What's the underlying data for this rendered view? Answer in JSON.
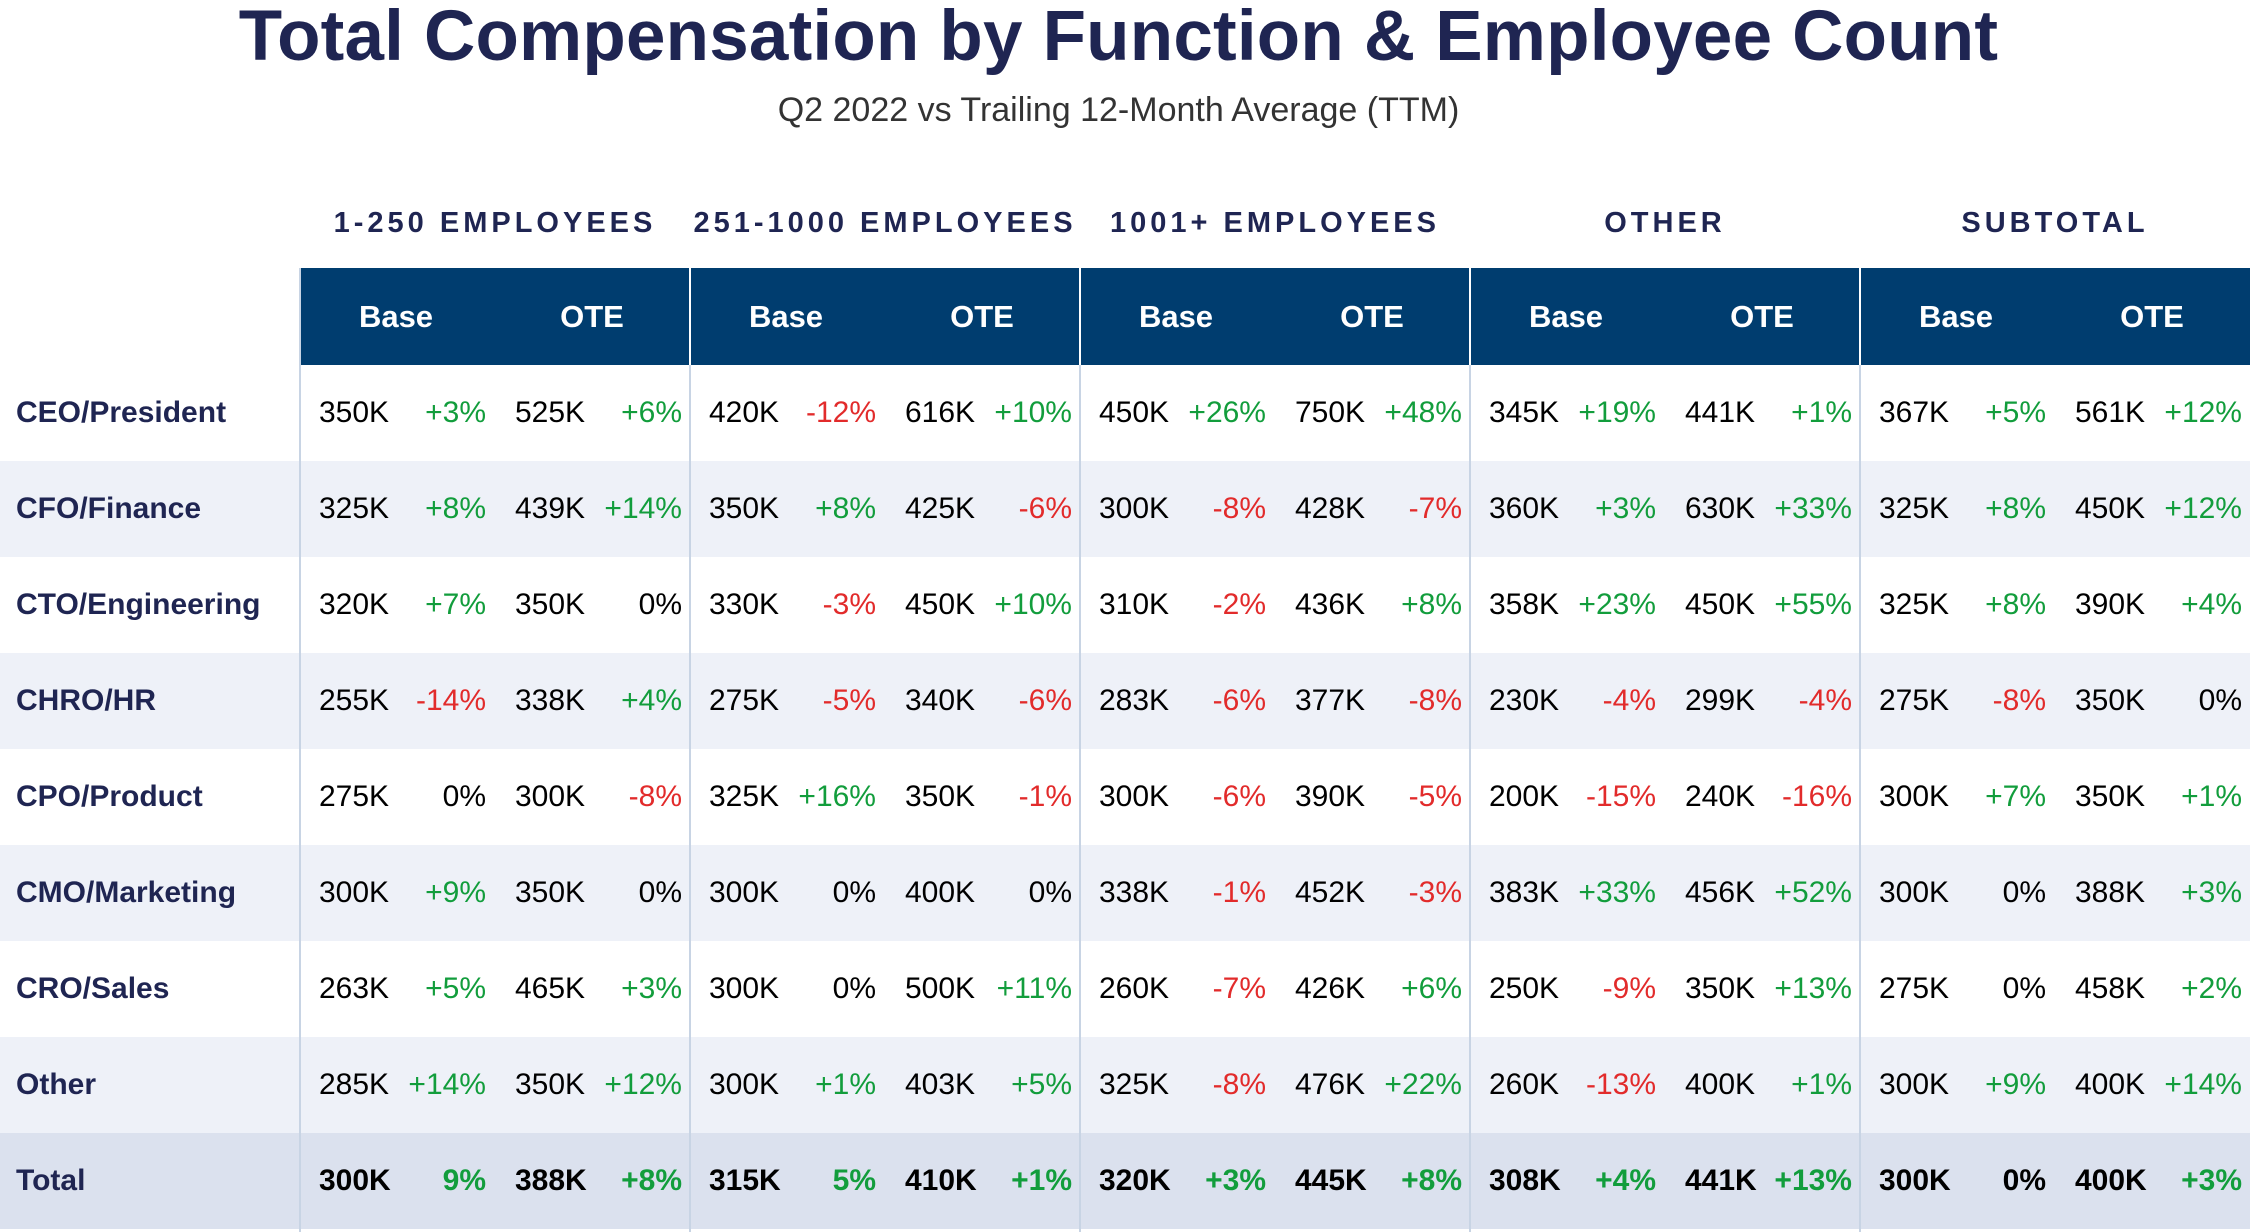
{
  "title": "Total Compensation by Function & Employee Count",
  "subtitle": "Q2 2022 vs Trailing 12-Month Average (TTM)",
  "groups": [
    "1-250 EMPLOYEES",
    "251-1000 EMPLOYEES",
    "1001+ EMPLOYEES",
    "OTHER",
    "SUBTOTAL"
  ],
  "sub_headers": [
    "Base",
    "OTE"
  ],
  "colors": {
    "header_band": "#003d6f",
    "title": "#1f2552",
    "positive": "#129d3c",
    "negative": "#e22b2b",
    "alt_row": "#eef1f8",
    "total_row": "#dbe1ee"
  },
  "chart_data": {
    "type": "table",
    "title": "Total Compensation by Function & Employee Count",
    "subtitle": "Q2 2022 vs Trailing 12-Month Average (TTM)",
    "column_groups": [
      "1-250 EMPLOYEES",
      "251-1000 EMPLOYEES",
      "1001+ EMPLOYEES",
      "OTHER",
      "SUBTOTAL"
    ],
    "sub_columns": [
      "Base",
      "OTE"
    ],
    "rows": [
      {
        "label": "CEO/President",
        "cells": [
          [
            "350K",
            "+3%"
          ],
          [
            "525K",
            "+6%"
          ],
          [
            "420K",
            "-12%"
          ],
          [
            "616K",
            "+10%"
          ],
          [
            "450K",
            "+26%"
          ],
          [
            "750K",
            "+48%"
          ],
          [
            "345K",
            "+19%"
          ],
          [
            "441K",
            "+1%"
          ],
          [
            "367K",
            "+5%"
          ],
          [
            "561K",
            "+12%"
          ]
        ]
      },
      {
        "label": "CFO/Finance",
        "cells": [
          [
            "325K",
            "+8%"
          ],
          [
            "439K",
            "+14%"
          ],
          [
            "350K",
            "+8%"
          ],
          [
            "425K",
            "-6%"
          ],
          [
            "300K",
            "-8%"
          ],
          [
            "428K",
            "-7%"
          ],
          [
            "360K",
            "+3%"
          ],
          [
            "630K",
            "+33%"
          ],
          [
            "325K",
            "+8%"
          ],
          [
            "450K",
            "+12%"
          ]
        ]
      },
      {
        "label": "CTO/Engineering",
        "cells": [
          [
            "320K",
            "+7%"
          ],
          [
            "350K",
            "0%"
          ],
          [
            "330K",
            "-3%"
          ],
          [
            "450K",
            "+10%"
          ],
          [
            "310K",
            "-2%"
          ],
          [
            "436K",
            "+8%"
          ],
          [
            "358K",
            "+23%"
          ],
          [
            "450K",
            "+55%"
          ],
          [
            "325K",
            "+8%"
          ],
          [
            "390K",
            "+4%"
          ]
        ]
      },
      {
        "label": "CHRO/HR",
        "cells": [
          [
            "255K",
            "-14%"
          ],
          [
            "338K",
            "+4%"
          ],
          [
            "275K",
            "-5%"
          ],
          [
            "340K",
            "-6%"
          ],
          [
            "283K",
            "-6%"
          ],
          [
            "377K",
            "-8%"
          ],
          [
            "230K",
            "-4%"
          ],
          [
            "299K",
            "-4%"
          ],
          [
            "275K",
            "-8%"
          ],
          [
            "350K",
            "0%"
          ]
        ]
      },
      {
        "label": "CPO/Product",
        "cells": [
          [
            "275K",
            "0%"
          ],
          [
            "300K",
            "-8%"
          ],
          [
            "325K",
            "+16%"
          ],
          [
            "350K",
            "-1%"
          ],
          [
            "300K",
            "-6%"
          ],
          [
            "390K",
            "-5%"
          ],
          [
            "200K",
            "-15%"
          ],
          [
            "240K",
            "-16%"
          ],
          [
            "300K",
            "+7%"
          ],
          [
            "350K",
            "+1%"
          ]
        ]
      },
      {
        "label": "CMO/Marketing",
        "cells": [
          [
            "300K",
            "+9%"
          ],
          [
            "350K",
            "0%"
          ],
          [
            "300K",
            "0%"
          ],
          [
            "400K",
            "0%"
          ],
          [
            "338K",
            "-1%"
          ],
          [
            "452K",
            "-3%"
          ],
          [
            "383K",
            "+33%"
          ],
          [
            "456K",
            "+52%"
          ],
          [
            "300K",
            "0%"
          ],
          [
            "388K",
            "+3%"
          ]
        ]
      },
      {
        "label": "CRO/Sales",
        "cells": [
          [
            "263K",
            "+5%"
          ],
          [
            "465K",
            "+3%"
          ],
          [
            "300K",
            "0%"
          ],
          [
            "500K",
            "+11%"
          ],
          [
            "260K",
            "-7%"
          ],
          [
            "426K",
            "+6%"
          ],
          [
            "250K",
            "-9%"
          ],
          [
            "350K",
            "+13%"
          ],
          [
            "275K",
            "0%"
          ],
          [
            "458K",
            "+2%"
          ]
        ]
      },
      {
        "label": "Other",
        "cells": [
          [
            "285K",
            "+14%"
          ],
          [
            "350K",
            "+12%"
          ],
          [
            "300K",
            "+1%"
          ],
          [
            "403K",
            "+5%"
          ],
          [
            "325K",
            "-8%"
          ],
          [
            "476K",
            "+22%"
          ],
          [
            "260K",
            "-13%"
          ],
          [
            "400K",
            "+1%"
          ],
          [
            "300K",
            "+9%"
          ],
          [
            "400K",
            "+14%"
          ]
        ]
      },
      {
        "label": "Total",
        "cells": [
          [
            "300K",
            "9%"
          ],
          [
            "388K",
            "+8%"
          ],
          [
            "315K",
            "5%"
          ],
          [
            "410K",
            "+1%"
          ],
          [
            "320K",
            "+3%"
          ],
          [
            "445K",
            "+8%"
          ],
          [
            "308K",
            "+4%"
          ],
          [
            "441K",
            "+13%"
          ],
          [
            "300K",
            "0%"
          ],
          [
            "400K",
            "+3%"
          ]
        ]
      }
    ]
  }
}
